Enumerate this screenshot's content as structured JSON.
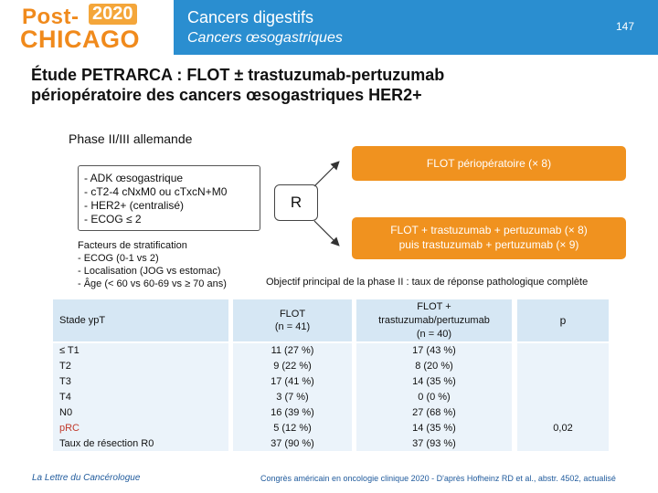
{
  "logo": {
    "post": "Post-",
    "year": "2020",
    "city": "CHICAGO"
  },
  "header": {
    "title": "Cancers digestifs",
    "subtitle": "Cancers œsogastriques",
    "page": "147"
  },
  "main_title_line1": "Étude PETRARCA : FLOT ± trastuzumab-pertuzumab",
  "main_title_line2": "périopératoire des cancers œsogastriques HER2+",
  "phase": "Phase II/III allemande",
  "population": [
    "- ADK œsogastrique",
    "- cT2-4 cNxM0 ou cTxcN+M0",
    "- HER2+ (centralisé)",
    "- ECOG ≤ 2"
  ],
  "stratification": {
    "title": "Facteurs de stratification",
    "items": [
      "- ECOG (0-1 vs 2)",
      "- Localisation (JOG vs estomac)",
      "- Âge (< 60 vs 60-69 vs ≥ 70 ans)"
    ]
  },
  "randomization": "R",
  "arm1": "FLOT périopératoire (× 8)",
  "arm2_line1": "FLOT + trastuzumab + pertuzumab (× 8)",
  "arm2_line2": "puis trastuzumab + pertuzumab (× 9)",
  "objective": "Objectif principal de la phase II : taux de réponse pathologique complète",
  "table": {
    "headers": {
      "stade": "Stade ypT",
      "flot_line1": "FLOT",
      "flot_line2": "(n = 41)",
      "trastu_line1": "FLOT +",
      "trastu_line2": "trastuzumab/pertuzumab",
      "trastu_line3": "(n = 40)",
      "p": "p"
    },
    "rows": [
      {
        "label": "≤ T1",
        "flot": "11 (27 %)",
        "trastu": "17 (43 %)"
      },
      {
        "label": "T2",
        "flot": "9 (22 %)",
        "trastu": "8 (20 %)"
      },
      {
        "label": "T3",
        "flot": "17 (41 %)",
        "trastu": "14 (35 %)"
      },
      {
        "label": "T4",
        "flot": "3 (7 %)",
        "trastu": "0 (0 %)"
      },
      {
        "label": "N0",
        "flot": "16 (39 %)",
        "trastu": "27 (68 %)"
      },
      {
        "label": "pRC",
        "flot": "5 (12 %)",
        "trastu": "14 (35 %)",
        "p": "0,02"
      },
      {
        "label": "Taux de résection R0",
        "flot": "37 (90 %)",
        "trastu": "37 (93 %)"
      }
    ]
  },
  "footer": {
    "left": "La Lettre du Cancérologue",
    "right": "Congrès américain en oncologie clinique 2020 - D'après Hofheinz RD et al., abstr. 4502, actualisé"
  },
  "colors": {
    "header_blue": "#2a8ed0",
    "arm_orange": "#f0921f",
    "table_header": "#d6e7f4",
    "table_body": "#ebf3fa",
    "prc_red": "#c0392b"
  }
}
